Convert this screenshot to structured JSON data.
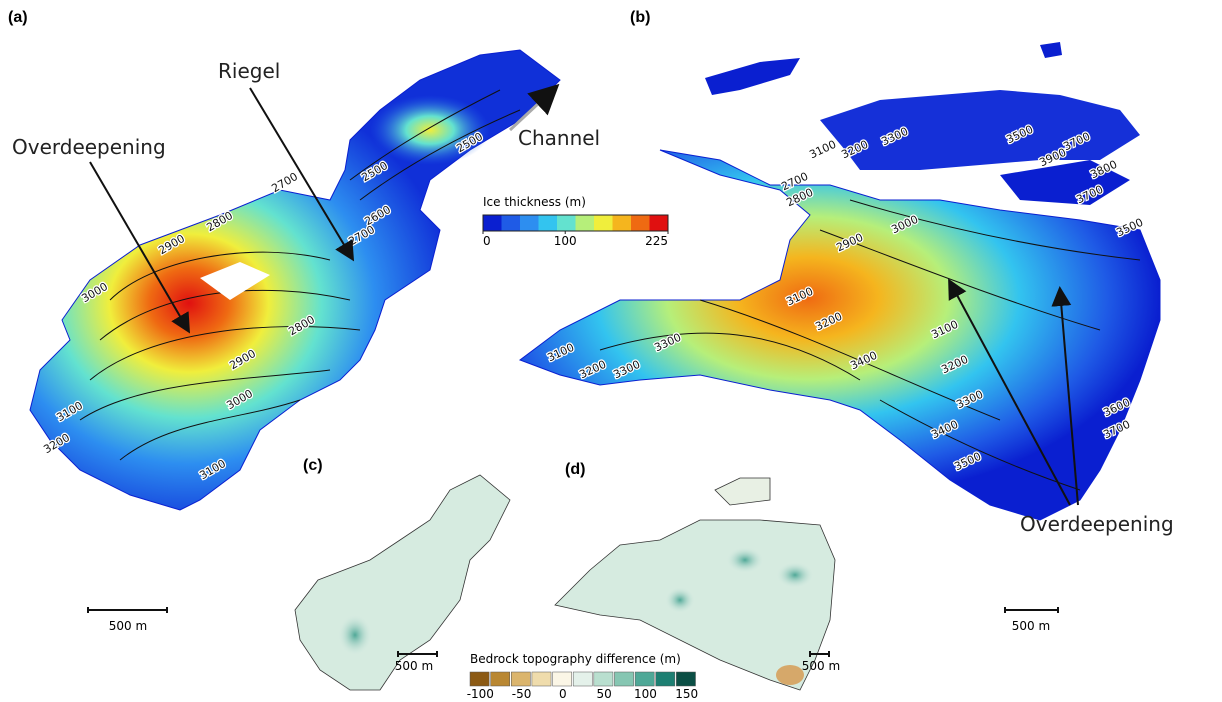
{
  "panels": {
    "a": "(a)",
    "b": "(b)",
    "c": "(c)",
    "d": "(d)"
  },
  "annotations": {
    "overdeepening_a": "Overdeepening",
    "riegel": "Riegel",
    "channel": "Channel",
    "overdeepening_b": "Overdeepening"
  },
  "ice_colorbar": {
    "title": "Ice thickness (m)",
    "ticks": [
      0,
      100,
      225
    ],
    "colors": [
      "#0a1fd0",
      "#1f5be6",
      "#2d8ef0",
      "#33c4ef",
      "#63e2cf",
      "#b6ef7a",
      "#f0ee3c",
      "#f5b51e",
      "#ef6a12",
      "#e01010"
    ]
  },
  "bedrock_colorbar": {
    "title": "Bedrock topography difference (m)",
    "ticks": [
      -100,
      -50,
      0,
      50,
      100,
      150
    ],
    "colors": [
      "#8c5a14",
      "#b98732",
      "#dbb56d",
      "#efdcac",
      "#fbf6e6",
      "#e4f1ea",
      "#b9dfcf",
      "#86c6b2",
      "#4fa897",
      "#1d7f72",
      "#0b4f45"
    ]
  },
  "scale_bars": {
    "a": "500 m",
    "b": "500 m",
    "c": "500 m",
    "d": "500 m"
  },
  "contours_a": [
    2700,
    2800,
    2900,
    3000,
    2500,
    2500,
    2600,
    2700,
    2800,
    2900,
    3000,
    3100,
    3200,
    3100
  ],
  "contours_b": [
    3100,
    3200,
    3300,
    3500,
    3700,
    3900,
    3800,
    3700,
    3500,
    2700,
    2800,
    2900,
    3000,
    3100,
    3200,
    3100,
    3200,
    3300,
    3300,
    3100,
    3200,
    3300,
    3400,
    3500,
    3400,
    3600,
    3700
  ]
}
